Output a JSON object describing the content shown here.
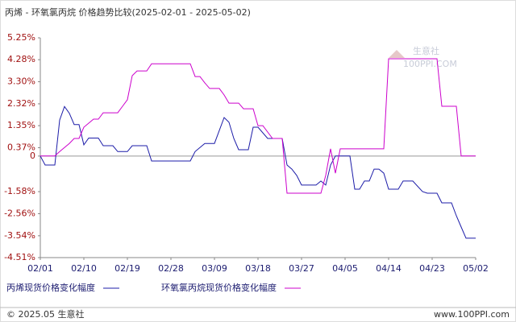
{
  "chart_data": {
    "type": "line",
    "title": "丙烯 - 环氧氯丙烷 价格趋势比较(2025-02-01 - 2025-05-02)",
    "xlim": [
      "02/01",
      "05/02"
    ],
    "xticks": [
      "02/01",
      "02/10",
      "02/19",
      "02/28",
      "03/09",
      "03/18",
      "03/27",
      "04/05",
      "04/14",
      "04/23",
      "05/02"
    ],
    "ylim": [
      -4.51,
      5.25
    ],
    "yticks": [
      {
        "value": 5.25,
        "label": "5.25%"
      },
      {
        "value": 4.28,
        "label": "4.28%"
      },
      {
        "value": 3.3,
        "label": "3.30%"
      },
      {
        "value": 2.32,
        "label": "2.32%"
      },
      {
        "value": 1.35,
        "label": "1.35%"
      },
      {
        "value": 0.37,
        "label": "0.37%"
      },
      0,
      {
        "value": -1.58,
        "label": "-1.58%"
      },
      {
        "value": -2.56,
        "label": "-2.56%"
      },
      {
        "value": -3.54,
        "label": "-3.54%"
      },
      {
        "value": -4.51,
        "label": "-4.51%"
      }
    ],
    "series": [
      {
        "name": "丙烯现货价格变化幅度",
        "color": "#1c1ca8",
        "x": [
          "02/01",
          "02/02",
          "02/04",
          "02/05",
          "02/06",
          "02/07",
          "02/08",
          "02/09",
          "02/10",
          "02/11",
          "02/13",
          "02/14",
          "02/16",
          "02/17",
          "02/19",
          "02/20",
          "02/23",
          "02/24",
          "02/26",
          "03/04",
          "03/05",
          "03/07",
          "03/09",
          "03/11",
          "03/12",
          "03/13",
          "03/14",
          "03/16",
          "03/17",
          "03/18",
          "03/20",
          "03/21",
          "03/23",
          "03/24",
          "03/25",
          "03/26",
          "03/27",
          "03/29",
          "03/30",
          "03/31",
          "04/01",
          "04/02",
          "04/03",
          "04/06",
          "04/07",
          "04/08",
          "04/09",
          "04/10",
          "04/11",
          "04/12",
          "04/13",
          "04/14",
          "04/16",
          "04/17",
          "04/19",
          "04/21",
          "04/22",
          "04/24",
          "04/25",
          "04/27",
          "04/28",
          "04/29",
          "04/30",
          "05/02"
        ],
        "values": [
          0,
          -0.4,
          -0.4,
          1.6,
          2.2,
          1.9,
          1.4,
          1.4,
          0.5,
          0.8,
          0.8,
          0.46,
          0.46,
          0.2,
          0.2,
          0.46,
          0.46,
          -0.22,
          -0.22,
          -0.22,
          0.2,
          0.56,
          0.56,
          1.71,
          1.5,
          0.78,
          0.28,
          0.28,
          1.28,
          1.28,
          0.78,
          0.78,
          0.78,
          -0.4,
          -0.58,
          -0.86,
          -1.29,
          -1.29,
          -1.29,
          -1.11,
          -1.29,
          -0.4,
          0,
          0,
          -1.47,
          -1.47,
          -1.11,
          -1.11,
          -0.58,
          -0.58,
          -0.76,
          -1.47,
          -1.47,
          -1.11,
          -1.11,
          -1.58,
          -1.65,
          -1.65,
          -2.08,
          -2.08,
          -2.65,
          -3.15,
          -3.65,
          -3.65
        ]
      },
      {
        "name": "环氧氯丙烷现货价格变化幅度",
        "color": "#cc00cc",
        "x": [
          "02/01",
          "02/04",
          "02/05",
          "02/07",
          "02/08",
          "02/09",
          "02/10",
          "02/12",
          "02/13",
          "02/14",
          "02/17",
          "02/18",
          "02/19",
          "02/20",
          "02/21",
          "02/23",
          "02/24",
          "03/04",
          "03/05",
          "03/06",
          "03/07",
          "03/08",
          "03/10",
          "03/11",
          "03/12",
          "03/14",
          "03/15",
          "03/17",
          "03/18",
          "03/19",
          "03/21",
          "03/23",
          "03/24",
          "03/31",
          "04/01",
          "04/02",
          "04/03",
          "04/04",
          "04/13",
          "04/14",
          "04/24",
          "04/25",
          "04/28",
          "04/29",
          "05/02"
        ],
        "values": [
          0,
          0,
          0.2,
          0.56,
          0.78,
          0.78,
          1.28,
          1.64,
          1.64,
          1.92,
          1.92,
          2.21,
          2.5,
          3.57,
          3.78,
          3.78,
          4.1,
          4.1,
          3.53,
          3.53,
          3.25,
          3.0,
          3.0,
          2.71,
          2.35,
          2.35,
          2.1,
          2.1,
          1.35,
          1.35,
          0.78,
          0.78,
          -1.65,
          -1.65,
          -0.86,
          0.32,
          -0.76,
          0.32,
          0.32,
          4.32,
          4.32,
          2.21,
          2.21,
          0,
          0
        ]
      }
    ],
    "watermark": [
      "生意社",
      "100PPI.COM"
    ],
    "footer_left": "© 2025.05 生意社",
    "footer_right": "www.100PPI.com"
  }
}
